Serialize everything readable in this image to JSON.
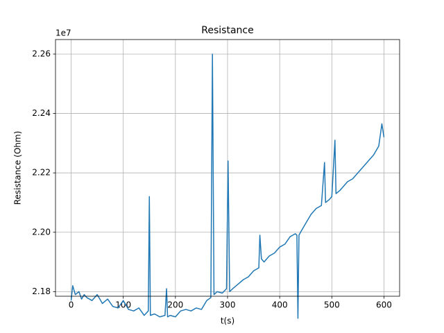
{
  "chart_data": {
    "type": "line",
    "title": "Resistance",
    "x_label": "t(s)",
    "y_label": "Resistance (Ohm)",
    "y_offset_label": "1e7",
    "x": [
      0,
      3,
      8,
      15,
      20,
      25,
      30,
      40,
      50,
      60,
      70,
      80,
      90,
      100,
      110,
      120,
      130,
      140,
      148,
      150,
      152,
      160,
      170,
      180,
      183,
      185,
      190,
      200,
      210,
      220,
      230,
      240,
      250,
      260,
      268,
      271,
      274,
      280,
      290,
      298,
      301,
      304,
      310,
      320,
      330,
      340,
      350,
      360,
      362,
      365,
      370,
      380,
      390,
      400,
      410,
      420,
      430,
      433,
      435,
      437,
      440,
      450,
      460,
      470,
      480,
      486,
      488,
      495,
      500,
      506,
      508,
      515,
      520,
      530,
      540,
      550,
      560,
      570,
      580,
      590,
      596,
      600
    ],
    "series": [
      {
        "name": "Resistance",
        "color": "#1f77b4",
        "values": [
          21770000,
          21820000,
          21790000,
          21800000,
          21775000,
          21790000,
          21780000,
          21770000,
          21790000,
          21760000,
          21775000,
          21750000,
          21745000,
          21770000,
          21740000,
          21735000,
          21745000,
          21720000,
          21735000,
          22120000,
          21720000,
          21725000,
          21715000,
          21720000,
          21810000,
          21715000,
          21720000,
          21715000,
          21735000,
          21740000,
          21735000,
          21745000,
          21740000,
          21770000,
          21780000,
          22600000,
          21790000,
          21800000,
          21795000,
          21810000,
          22240000,
          21800000,
          21810000,
          21825000,
          21840000,
          21850000,
          21870000,
          21880000,
          21990000,
          21910000,
          21900000,
          21920000,
          21930000,
          21950000,
          21960000,
          21985000,
          21995000,
          21990000,
          21710000,
          21990000,
          22000000,
          22030000,
          22060000,
          22080000,
          22090000,
          22235000,
          22100000,
          22110000,
          22120000,
          22310000,
          22130000,
          22140000,
          22150000,
          22170000,
          22180000,
          22200000,
          22220000,
          22240000,
          22260000,
          22290000,
          22365000,
          22320000
        ]
      }
    ],
    "xlim": [
      -30,
      630
    ],
    "xticks": [
      0,
      100,
      200,
      300,
      400,
      500,
      600
    ],
    "ylim": [
      21784500,
      22649000
    ],
    "yticks": [
      {
        "value": 21800000,
        "label": "2.18"
      },
      {
        "value": 22000000,
        "label": "2.20"
      },
      {
        "value": 22200000,
        "label": "2.22"
      },
      {
        "value": 22400000,
        "label": "2.24"
      },
      {
        "value": 22600000,
        "label": "2.26"
      }
    ],
    "grid": true
  }
}
